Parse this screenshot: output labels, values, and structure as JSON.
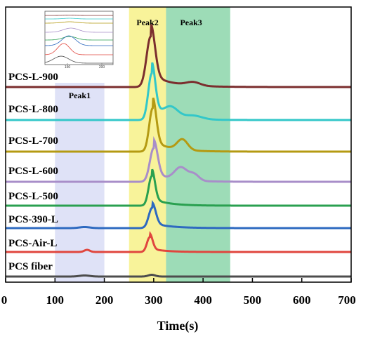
{
  "chart_data": {
    "type": "line",
    "title": "",
    "xlabel": "Time(s)",
    "ylabel": "",
    "xlim": [
      0,
      700
    ],
    "x_ticks": [
      0,
      100,
      200,
      300,
      400,
      500,
      600,
      700
    ],
    "y_ticks_shown": false,
    "regions": [
      {
        "label": "Peak1",
        "x_range": [
          100,
          200
        ],
        "color": "#dfe2f7"
      },
      {
        "label": "Peak2",
        "x_range": [
          250,
          325
        ],
        "color": "#f8f39a"
      },
      {
        "label": "Peak3",
        "x_range": [
          325,
          455
        ],
        "color": "#9ddcb7"
      }
    ],
    "series": [
      {
        "name": "PCS-L-900",
        "color": "#7b2e2e",
        "baseline": 0,
        "peaks": [
          [
            294,
            12,
            72
          ],
          [
            380,
            20,
            5
          ]
        ]
      },
      {
        "name": "PCS-L-800",
        "color": "#33c7c9",
        "baseline": 0,
        "peaks": [
          [
            296,
            10,
            66
          ],
          [
            335,
            20,
            14
          ],
          [
            380,
            25,
            5
          ]
        ]
      },
      {
        "name": "PCS-L-700",
        "color": "#b49a12",
        "baseline": 0,
        "peaks": [
          [
            298,
            10,
            62
          ],
          [
            358,
            15,
            15
          ]
        ]
      },
      {
        "name": "PCS-L-600",
        "color": "#a88ec9",
        "baseline": 0,
        "peaks": [
          [
            300,
            11,
            48
          ],
          [
            355,
            18,
            18
          ],
          [
            382,
            14,
            9
          ]
        ]
      },
      {
        "name": "PCS-L-500",
        "color": "#2aa050",
        "baseline": 0,
        "peaks": [
          [
            296,
            9,
            42
          ]
        ]
      },
      {
        "name": "PCS-390-L",
        "color": "#2e6ac0",
        "baseline": 0,
        "peaks": [
          [
            297,
            10,
            29
          ],
          [
            160,
            15,
            1.5
          ]
        ]
      },
      {
        "name": "PCS-Air-L",
        "color": "#e0463e",
        "baseline": 0,
        "peaks": [
          [
            292,
            8,
            21
          ],
          [
            165,
            8,
            3
          ]
        ]
      },
      {
        "name": "PCS fiber",
        "color": "#4d4d4d",
        "baseline": 0,
        "peaks": [
          [
            296,
            10,
            2.5
          ],
          [
            160,
            15,
            1.5
          ]
        ]
      }
    ],
    "inset": {
      "x_ticks": [
        150,
        200
      ]
    }
  }
}
